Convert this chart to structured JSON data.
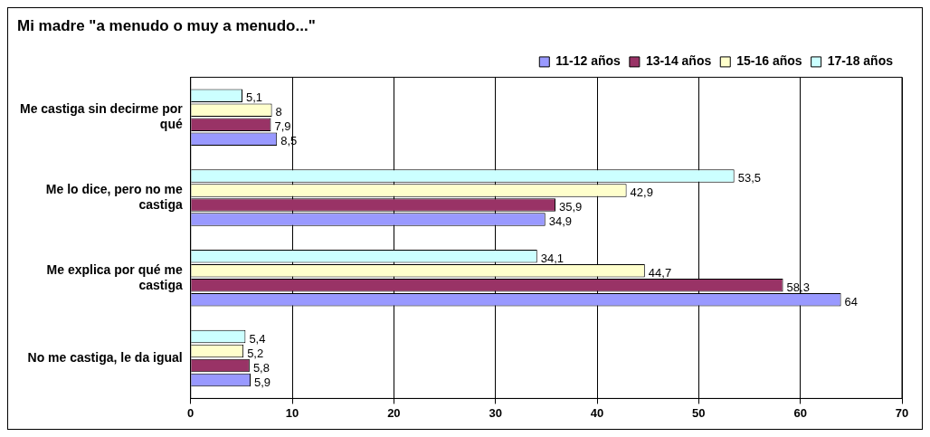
{
  "chart_data": {
    "type": "bar",
    "orientation": "horizontal",
    "title": "Mi madre \"a menudo o muy a menudo...\"",
    "categories": [
      "Me castiga sin decirme por qué",
      "Me lo dice, pero no me castiga",
      "Me explica por qué me castiga",
      "No me castiga, le da igual"
    ],
    "series": [
      {
        "name": "11-12 años",
        "color": "#9999ff",
        "values": [
          8.5,
          34.9,
          64,
          5.9
        ],
        "value_labels": [
          "8,5",
          "34,9",
          "64",
          "5,9"
        ]
      },
      {
        "name": "13-14 años",
        "color": "#993366",
        "values": [
          7.9,
          35.9,
          58.3,
          5.8
        ],
        "value_labels": [
          "7,9",
          "35,9",
          "58,3",
          "5,8"
        ]
      },
      {
        "name": "15-16 años",
        "color": "#ffffcc",
        "values": [
          8,
          42.9,
          44.7,
          5.2
        ],
        "value_labels": [
          "8",
          "42,9",
          "44,7",
          "5,2"
        ]
      },
      {
        "name": "17-18 años",
        "color": "#ccffff",
        "values": [
          5.1,
          53.5,
          34.1,
          5.4
        ],
        "value_labels": [
          "5,1",
          "53,5",
          "34,1",
          "5,4"
        ]
      }
    ],
    "xlim": [
      0,
      70
    ],
    "xticks": [
      0,
      10,
      20,
      30,
      40,
      50,
      60,
      70
    ],
    "grid": "x",
    "legend": "top"
  }
}
